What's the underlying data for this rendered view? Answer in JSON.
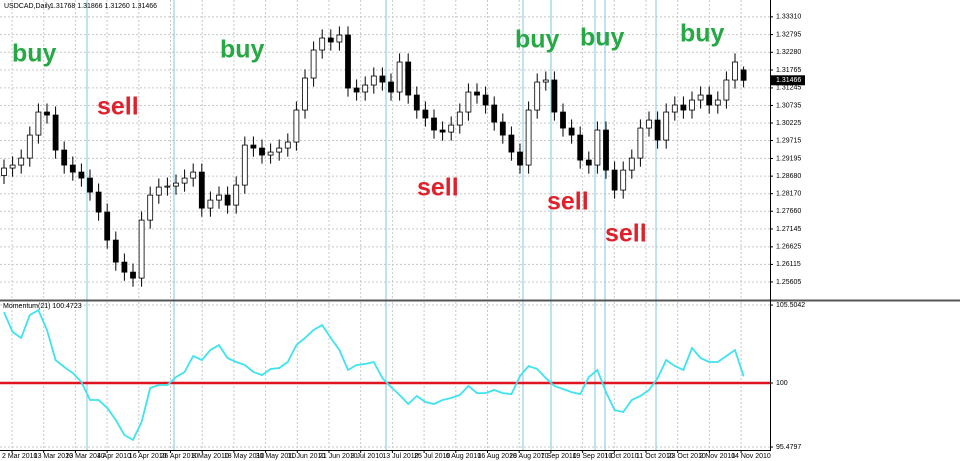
{
  "chart_data": [
    {
      "type": "candlestick",
      "title": "USDCAD,Daily",
      "subtitle": "1.31768 1.31866 1.31260 1.31466",
      "open": [
        1.287,
        1.28915,
        1.29002,
        1.29205,
        1.29874,
        1.30543,
        1.30456,
        1.29438,
        1.29002,
        1.28798,
        1.28624,
        1.28217,
        1.27635,
        1.26821,
        1.26181,
        1.2589,
        1.25716,
        1.27402,
        1.28129,
        1.28362,
        1.28391,
        1.28478,
        1.28624,
        1.28798,
        1.27751,
        1.27984,
        1.28129,
        1.27839,
        1.2842,
        1.29583,
        1.29496,
        1.29293,
        1.2938,
        1.29496,
        1.29671,
        1.30601,
        1.31532,
        1.32346,
        1.32695,
        1.32579,
        1.32782,
        1.31241,
        1.31125,
        1.31328,
        1.3159,
        1.31415,
        1.31125,
        1.31997,
        1.31037,
        1.30601,
        1.30369,
        1.3002,
        1.29961,
        1.30165,
        1.30543,
        1.31125,
        1.31037,
        1.30747,
        1.30252,
        1.29874,
        1.2938,
        1.29002,
        1.30601,
        1.31415,
        1.31474,
        1.30543,
        1.30078,
        1.29874,
        1.29147,
        1.29002,
        1.3002,
        1.28856,
        1.28275,
        1.28856,
        1.29205,
        1.30078,
        1.3031,
        1.29729,
        1.30543,
        1.30747,
        1.30601,
        1.30892,
        1.31037,
        1.30747,
        1.30892,
        1.31474,
        1.31768
      ],
      "high": [
        1.29165,
        1.29252,
        1.29455,
        1.30124,
        1.30793,
        1.30793,
        1.30706,
        1.29688,
        1.29252,
        1.29048,
        1.28874,
        1.28467,
        1.27885,
        1.27071,
        1.26431,
        1.2614,
        1.27652,
        1.28379,
        1.28612,
        1.28641,
        1.28728,
        1.28874,
        1.29048,
        1.29048,
        1.28234,
        1.28379,
        1.28379,
        1.2867,
        1.29833,
        1.29833,
        1.29746,
        1.2963,
        1.29746,
        1.29921,
        1.30851,
        1.31782,
        1.32596,
        1.32945,
        1.32945,
        1.33032,
        1.33032,
        1.31491,
        1.31578,
        1.3184,
        1.3184,
        1.31665,
        1.32247,
        1.32247,
        1.31287,
        1.30851,
        1.30619,
        1.3027,
        1.30415,
        1.30793,
        1.31375,
        1.31375,
        1.31287,
        1.30997,
        1.30502,
        1.30124,
        1.2963,
        1.30851,
        1.31665,
        1.31724,
        1.31724,
        1.30793,
        1.30328,
        1.30124,
        1.29397,
        1.3027,
        1.3027,
        1.29106,
        1.29106,
        1.29455,
        1.30328,
        1.3056,
        1.3056,
        1.30793,
        1.30997,
        1.30997,
        1.31142,
        1.31287,
        1.31287,
        1.31142,
        1.31724,
        1.32247,
        1.31866
      ],
      "low": [
        1.2845,
        1.28665,
        1.28752,
        1.28955,
        1.29624,
        1.30206,
        1.29188,
        1.28752,
        1.28548,
        1.28374,
        1.27967,
        1.27385,
        1.26571,
        1.25931,
        1.2564,
        1.25466,
        1.25466,
        1.27152,
        1.27879,
        1.28112,
        1.28141,
        1.28228,
        1.28374,
        1.27501,
        1.27501,
        1.27734,
        1.27589,
        1.27589,
        1.2817,
        1.29246,
        1.29043,
        1.29043,
        1.2913,
        1.29246,
        1.29421,
        1.30351,
        1.31282,
        1.32096,
        1.32329,
        1.32329,
        1.30991,
        1.30875,
        1.30875,
        1.31078,
        1.31165,
        1.30875,
        1.30875,
        1.30787,
        1.30351,
        1.30119,
        1.2977,
        1.29711,
        1.29711,
        1.29915,
        1.30293,
        1.30787,
        1.30497,
        1.30002,
        1.29624,
        1.2913,
        1.28752,
        1.28752,
        1.30351,
        1.31165,
        1.30293,
        1.29828,
        1.29624,
        1.28897,
        1.28752,
        1.28752,
        1.28606,
        1.28025,
        1.28025,
        1.28606,
        1.28955,
        1.29828,
        1.29479,
        1.29479,
        1.30293,
        1.30351,
        1.30351,
        1.30642,
        1.30497,
        1.30497,
        1.30642,
        1.31224,
        1.3126
      ],
      "close": [
        1.28915,
        1.29002,
        1.29205,
        1.29874,
        1.30543,
        1.30456,
        1.29438,
        1.29002,
        1.28798,
        1.28624,
        1.28217,
        1.27635,
        1.26821,
        1.26181,
        1.2589,
        1.25716,
        1.27402,
        1.28129,
        1.28362,
        1.28391,
        1.28478,
        1.28624,
        1.28798,
        1.27751,
        1.27984,
        1.28129,
        1.27839,
        1.2842,
        1.29583,
        1.29496,
        1.29293,
        1.2938,
        1.29496,
        1.29671,
        1.30601,
        1.31532,
        1.32346,
        1.32695,
        1.32579,
        1.32782,
        1.31241,
        1.31125,
        1.31328,
        1.3159,
        1.31415,
        1.31125,
        1.31997,
        1.31037,
        1.30601,
        1.30369,
        1.3002,
        1.29961,
        1.30165,
        1.30543,
        1.31125,
        1.31037,
        1.30747,
        1.30252,
        1.29874,
        1.2938,
        1.29002,
        1.30601,
        1.31415,
        1.31474,
        1.30543,
        1.30078,
        1.29874,
        1.29147,
        1.29002,
        1.3002,
        1.28856,
        1.28275,
        1.28856,
        1.29205,
        1.30078,
        1.3031,
        1.29729,
        1.30543,
        1.30747,
        1.30601,
        1.30892,
        1.31037,
        1.30747,
        1.30892,
        1.31474,
        1.31997,
        1.31466
      ],
      "last_label": "1.31466",
      "ylim": [
        1.2508,
        1.338
      ],
      "yticks": [
        {
          "value": 1.3331,
          "label": "1.33310"
        },
        1.32795,
        {
          "value": 1.3228,
          "label": "1.32280"
        },
        1.31765,
        1.31245,
        1.30735,
        1.30225,
        1.29715,
        1.29195,
        {
          "value": 1.2868,
          "label": "1.28680"
        },
        {
          "value": 1.2817,
          "label": "1.28170"
        },
        {
          "value": 1.2766,
          "label": "1.27660"
        },
        1.27145,
        1.26625,
        1.26115,
        1.25605
      ],
      "grid": true,
      "annotations": [
        {
          "text": "buy",
          "color": "#26a844"
        },
        {
          "text": "sell",
          "color": "#e0202a"
        },
        {
          "text": "buy",
          "color": "#26a844"
        },
        {
          "text": "sell",
          "color": "#e0202a"
        },
        {
          "text": "buy",
          "color": "#26a844"
        },
        {
          "text": "sell",
          "color": "#e0202a"
        },
        {
          "text": "buy",
          "color": "#26a844"
        },
        {
          "text": "sell",
          "color": "#e0202a"
        },
        {
          "text": "buy",
          "color": "#26a844"
        }
      ]
    },
    {
      "type": "line",
      "title": "Momentum(21) 100.4723",
      "color": "#3fe3ee",
      "values": [
        105.01,
        103.6,
        103.18,
        104.8,
        105.15,
        103.74,
        101.62,
        101.13,
        100.71,
        100.07,
        98.8,
        98.8,
        98.24,
        97.39,
        96.33,
        95.98,
        97.25,
        99.65,
        99.86,
        99.86,
        100.42,
        100.78,
        101.91,
        101.62,
        102.33,
        102.68,
        101.76,
        101.48,
        101.27,
        100.78,
        100.56,
        100.99,
        101.06,
        101.48,
        102.68,
        103.18,
        103.74,
        104.09,
        103.18,
        102.33,
        100.92,
        101.27,
        101.34,
        101.48,
        100.35,
        99.72,
        99.15,
        98.52,
        99.08,
        98.66,
        98.52,
        98.8,
        98.94,
        99.15,
        99.79,
        99.29,
        99.29,
        99.51,
        99.29,
        99.22,
        100.49,
        101.2,
        100.99,
        100.35,
        99.79,
        99.58,
        99.36,
        99.22,
        100.42,
        100.92,
        99.36,
        98.09,
        97.95,
        98.8,
        99.08,
        99.51,
        100.35,
        101.62,
        101.2,
        100.92,
        102.47,
        101.76,
        101.48,
        101.48,
        101.91,
        102.33,
        100.4723
      ],
      "level": 100,
      "level_color": "#e0141e",
      "ylim": [
        95.27,
        105.72
      ],
      "yticks": [
        105.5042,
        100,
        95.4797
      ],
      "x_labels": [
        "2 Mar 2010",
        "13 Mar 2010",
        "23 Mar 2010",
        "4 Apr 2010",
        "16 Apr 2010",
        "26 Apr 2010",
        "8 May 2010",
        "18 May 2010",
        "30 May 2010",
        "11 Jun 2010",
        "21 Jun 2010",
        "3 Jul 2010",
        "13 Jul 2010",
        "25 Jul 2010",
        "6 Aug 2010",
        "16 Aug 2010",
        "28 Aug 2010",
        "7 Sep 2010",
        "19 Sep 2010",
        "1 Oct 2010",
        "11 Oct 2010",
        "23 Oct 2010",
        "2 Nov 2010",
        "14 Nov 2010"
      ],
      "grid": true
    }
  ]
}
